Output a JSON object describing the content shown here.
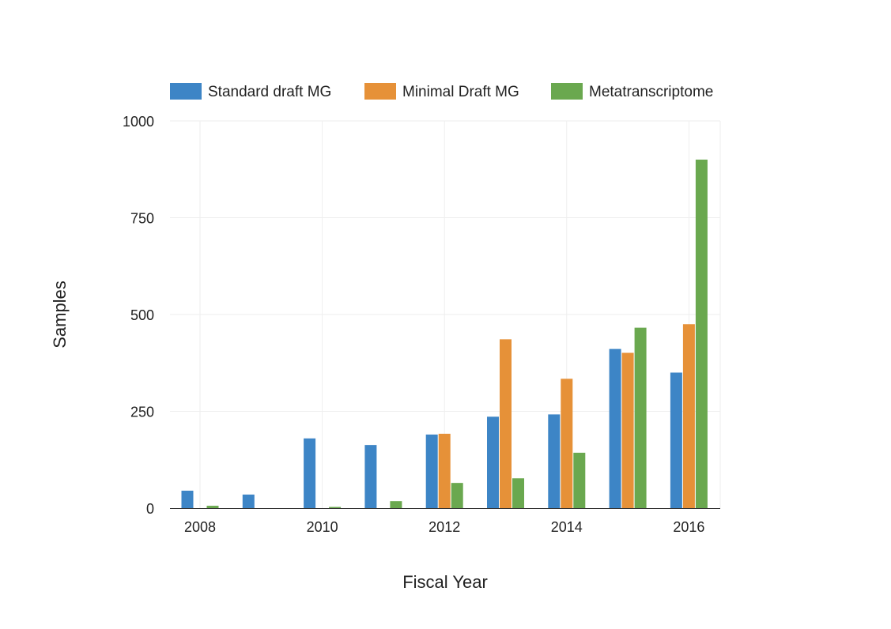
{
  "chart_data": {
    "type": "bar",
    "x": [
      2008,
      2009,
      2010,
      2011,
      2012,
      2013,
      2014,
      2015,
      2016
    ],
    "series": [
      {
        "name": "Standard draft MG",
        "color": "#3d85c6",
        "values": [
          45,
          35,
          180,
          163,
          190,
          236,
          242,
          411,
          350
        ]
      },
      {
        "name": "Minimal Draft MG",
        "color": "#e69138",
        "values": [
          0,
          0,
          0,
          0,
          192,
          436,
          334,
          401,
          475
        ]
      },
      {
        "name": "Metatranscriptome",
        "color": "#6aa84f",
        "values": [
          6,
          0,
          3,
          18,
          65,
          77,
          143,
          466,
          900
        ]
      }
    ],
    "xlabel": "Fiscal Year",
    "ylabel": "Samples",
    "ylim": [
      0,
      1000
    ],
    "yticks": [
      0,
      250,
      500,
      750,
      1000
    ],
    "xticks": [
      2008,
      2010,
      2012,
      2014,
      2016
    ],
    "legend_position": "top",
    "grid": true
  }
}
